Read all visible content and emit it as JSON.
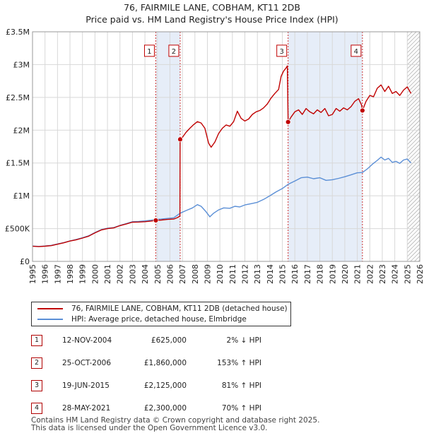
{
  "title_line1": "76, FAIRMILE LANE, COBHAM, KT11 2DB",
  "title_line2": "Price paid vs. HM Land Registry's House Price Index (HPI)",
  "chart_data": {
    "type": "line",
    "xlim": [
      1995,
      2026
    ],
    "ylim": [
      0,
      3500000
    ],
    "x_ticks": [
      1995,
      1996,
      1997,
      1998,
      1999,
      2000,
      2001,
      2002,
      2003,
      2004,
      2005,
      2006,
      2007,
      2008,
      2009,
      2010,
      2011,
      2012,
      2013,
      2014,
      2015,
      2016,
      2017,
      2018,
      2019,
      2020,
      2021,
      2022,
      2023,
      2024,
      2025,
      2026
    ],
    "y_ticks": [
      {
        "value": 0,
        "label": "£0"
      },
      {
        "value": 500000,
        "label": "£500K"
      },
      {
        "value": 1000000,
        "label": "£1M"
      },
      {
        "value": 1500000,
        "label": "£1.5M"
      },
      {
        "value": 2000000,
        "label": "£2M"
      },
      {
        "value": 2500000,
        "label": "£2.5M"
      },
      {
        "value": 3000000,
        "label": "£3M"
      },
      {
        "value": 3500000,
        "label": "£3.5M"
      }
    ],
    "shaded_periods": [
      [
        2004.87,
        2006.82
      ],
      [
        2015.46,
        2021.41
      ]
    ],
    "hatched_from": 2025.0,
    "series": [
      {
        "name": "76, FAIRMILE LANE, COBHAM, KT11 2DB (detached house)",
        "color": "#c00000",
        "points": [
          [
            1995.0,
            230000
          ],
          [
            1995.5,
            225000
          ],
          [
            1996.0,
            232000
          ],
          [
            1996.5,
            240000
          ],
          [
            1997.0,
            262000
          ],
          [
            1997.5,
            283000
          ],
          [
            1998.0,
            310000
          ],
          [
            1998.5,
            330000
          ],
          [
            1999.0,
            355000
          ],
          [
            1999.5,
            385000
          ],
          [
            2000.0,
            435000
          ],
          [
            2000.5,
            478000
          ],
          [
            2001.0,
            500000
          ],
          [
            2001.5,
            510000
          ],
          [
            2002.0,
            545000
          ],
          [
            2002.5,
            570000
          ],
          [
            2003.0,
            598000
          ],
          [
            2003.5,
            600000
          ],
          [
            2004.0,
            605000
          ],
          [
            2004.5,
            615000
          ],
          [
            2004.87,
            625000
          ],
          [
            2005.3,
            630000
          ],
          [
            2005.8,
            640000
          ],
          [
            2006.3,
            645000
          ],
          [
            2006.6,
            668000
          ],
          [
            2006.8,
            690000
          ],
          [
            2006.82,
            1860000
          ],
          [
            2007.0,
            1890000
          ],
          [
            2007.3,
            1970000
          ],
          [
            2007.6,
            2030000
          ],
          [
            2007.9,
            2085000
          ],
          [
            2008.2,
            2130000
          ],
          [
            2008.5,
            2110000
          ],
          [
            2008.8,
            2030000
          ],
          [
            2009.1,
            1800000
          ],
          [
            2009.3,
            1740000
          ],
          [
            2009.6,
            1820000
          ],
          [
            2009.9,
            1950000
          ],
          [
            2010.2,
            2030000
          ],
          [
            2010.5,
            2080000
          ],
          [
            2010.8,
            2060000
          ],
          [
            2011.1,
            2130000
          ],
          [
            2011.4,
            2290000
          ],
          [
            2011.7,
            2180000
          ],
          [
            2012.0,
            2140000
          ],
          [
            2012.3,
            2170000
          ],
          [
            2012.6,
            2240000
          ],
          [
            2012.9,
            2280000
          ],
          [
            2013.2,
            2300000
          ],
          [
            2013.5,
            2340000
          ],
          [
            2013.8,
            2400000
          ],
          [
            2014.1,
            2490000
          ],
          [
            2014.4,
            2560000
          ],
          [
            2014.7,
            2620000
          ],
          [
            2014.9,
            2820000
          ],
          [
            2015.1,
            2900000
          ],
          [
            2015.3,
            2950000
          ],
          [
            2015.4,
            2980000
          ],
          [
            2015.46,
            2125000
          ],
          [
            2015.7,
            2200000
          ],
          [
            2016.0,
            2280000
          ],
          [
            2016.3,
            2310000
          ],
          [
            2016.6,
            2240000
          ],
          [
            2016.9,
            2330000
          ],
          [
            2017.2,
            2280000
          ],
          [
            2017.5,
            2250000
          ],
          [
            2017.8,
            2310000
          ],
          [
            2018.1,
            2270000
          ],
          [
            2018.4,
            2330000
          ],
          [
            2018.7,
            2220000
          ],
          [
            2019.0,
            2240000
          ],
          [
            2019.3,
            2330000
          ],
          [
            2019.6,
            2290000
          ],
          [
            2019.9,
            2340000
          ],
          [
            2020.2,
            2310000
          ],
          [
            2020.5,
            2360000
          ],
          [
            2020.8,
            2440000
          ],
          [
            2021.1,
            2480000
          ],
          [
            2021.35,
            2380000
          ],
          [
            2021.41,
            2300000
          ],
          [
            2021.7,
            2440000
          ],
          [
            2022.0,
            2530000
          ],
          [
            2022.3,
            2510000
          ],
          [
            2022.6,
            2640000
          ],
          [
            2022.9,
            2690000
          ],
          [
            2023.2,
            2590000
          ],
          [
            2023.5,
            2670000
          ],
          [
            2023.8,
            2560000
          ],
          [
            2024.1,
            2590000
          ],
          [
            2024.4,
            2530000
          ],
          [
            2024.7,
            2610000
          ],
          [
            2025.0,
            2660000
          ],
          [
            2025.3,
            2560000
          ]
        ]
      },
      {
        "name": "HPI: Average price, detached house, Elmbridge",
        "color": "#5b8fd6",
        "points": [
          [
            1995.0,
            235000
          ],
          [
            1995.5,
            228000
          ],
          [
            1996.0,
            235000
          ],
          [
            1996.5,
            245000
          ],
          [
            1997.0,
            266000
          ],
          [
            1997.5,
            287000
          ],
          [
            1998.0,
            312000
          ],
          [
            1998.5,
            335000
          ],
          [
            1999.0,
            360000
          ],
          [
            1999.5,
            390000
          ],
          [
            2000.0,
            440000
          ],
          [
            2000.5,
            483000
          ],
          [
            2001.0,
            505000
          ],
          [
            2001.5,
            515000
          ],
          [
            2002.0,
            548000
          ],
          [
            2002.5,
            575000
          ],
          [
            2003.0,
            605000
          ],
          [
            2003.5,
            610000
          ],
          [
            2004.0,
            617000
          ],
          [
            2004.5,
            628000
          ],
          [
            2004.87,
            640000
          ],
          [
            2005.3,
            645000
          ],
          [
            2005.8,
            655000
          ],
          [
            2006.3,
            665000
          ],
          [
            2006.82,
            735000
          ],
          [
            2007.3,
            775000
          ],
          [
            2007.8,
            815000
          ],
          [
            2008.2,
            865000
          ],
          [
            2008.5,
            840000
          ],
          [
            2008.9,
            755000
          ],
          [
            2009.2,
            680000
          ],
          [
            2009.5,
            735000
          ],
          [
            2009.9,
            785000
          ],
          [
            2010.3,
            815000
          ],
          [
            2010.8,
            810000
          ],
          [
            2011.2,
            840000
          ],
          [
            2011.6,
            830000
          ],
          [
            2012.0,
            860000
          ],
          [
            2012.5,
            880000
          ],
          [
            2013.0,
            900000
          ],
          [
            2013.5,
            945000
          ],
          [
            2014.0,
            1000000
          ],
          [
            2014.5,
            1060000
          ],
          [
            2015.0,
            1110000
          ],
          [
            2015.46,
            1175000
          ],
          [
            2016.0,
            1225000
          ],
          [
            2016.5,
            1275000
          ],
          [
            2017.0,
            1285000
          ],
          [
            2017.5,
            1260000
          ],
          [
            2018.0,
            1275000
          ],
          [
            2018.5,
            1235000
          ],
          [
            2019.0,
            1245000
          ],
          [
            2019.5,
            1265000
          ],
          [
            2020.0,
            1290000
          ],
          [
            2020.5,
            1320000
          ],
          [
            2021.0,
            1350000
          ],
          [
            2021.41,
            1355000
          ],
          [
            2021.8,
            1410000
          ],
          [
            2022.2,
            1480000
          ],
          [
            2022.6,
            1540000
          ],
          [
            2022.9,
            1590000
          ],
          [
            2023.2,
            1545000
          ],
          [
            2023.5,
            1570000
          ],
          [
            2023.8,
            1510000
          ],
          [
            2024.1,
            1525000
          ],
          [
            2024.4,
            1495000
          ],
          [
            2024.7,
            1545000
          ],
          [
            2025.0,
            1560000
          ],
          [
            2025.3,
            1500000
          ]
        ]
      }
    ],
    "sale_markers": [
      {
        "id": "1",
        "x": 2004.87,
        "y": 625000
      },
      {
        "id": "2",
        "x": 2006.82,
        "y": 1860000
      },
      {
        "id": "3",
        "x": 2015.46,
        "y": 2125000
      },
      {
        "id": "4",
        "x": 2021.41,
        "y": 2300000
      }
    ],
    "marker_box_value": 3200000
  },
  "legend": {
    "property": "76, FAIRMILE LANE, COBHAM, KT11 2DB (detached house)",
    "hpi": "HPI: Average price, detached house, Elmbridge"
  },
  "sales": [
    {
      "id": "1",
      "date": "12-NOV-2004",
      "price": "£625,000",
      "hpi": "2% ↓ HPI"
    },
    {
      "id": "2",
      "date": "25-OCT-2006",
      "price": "£1,860,000",
      "hpi": "153% ↑ HPI"
    },
    {
      "id": "3",
      "date": "19-JUN-2015",
      "price": "£2,125,000",
      "hpi": "81% ↑ HPI"
    },
    {
      "id": "4",
      "date": "28-MAY-2021",
      "price": "£2,300,000",
      "hpi": "70% ↑ HPI"
    }
  ],
  "footer": {
    "line1": "Contains HM Land Registry data © Crown copyright and database right 2025.",
    "line2": "This data is licensed under the Open Government Licence v3.0."
  }
}
